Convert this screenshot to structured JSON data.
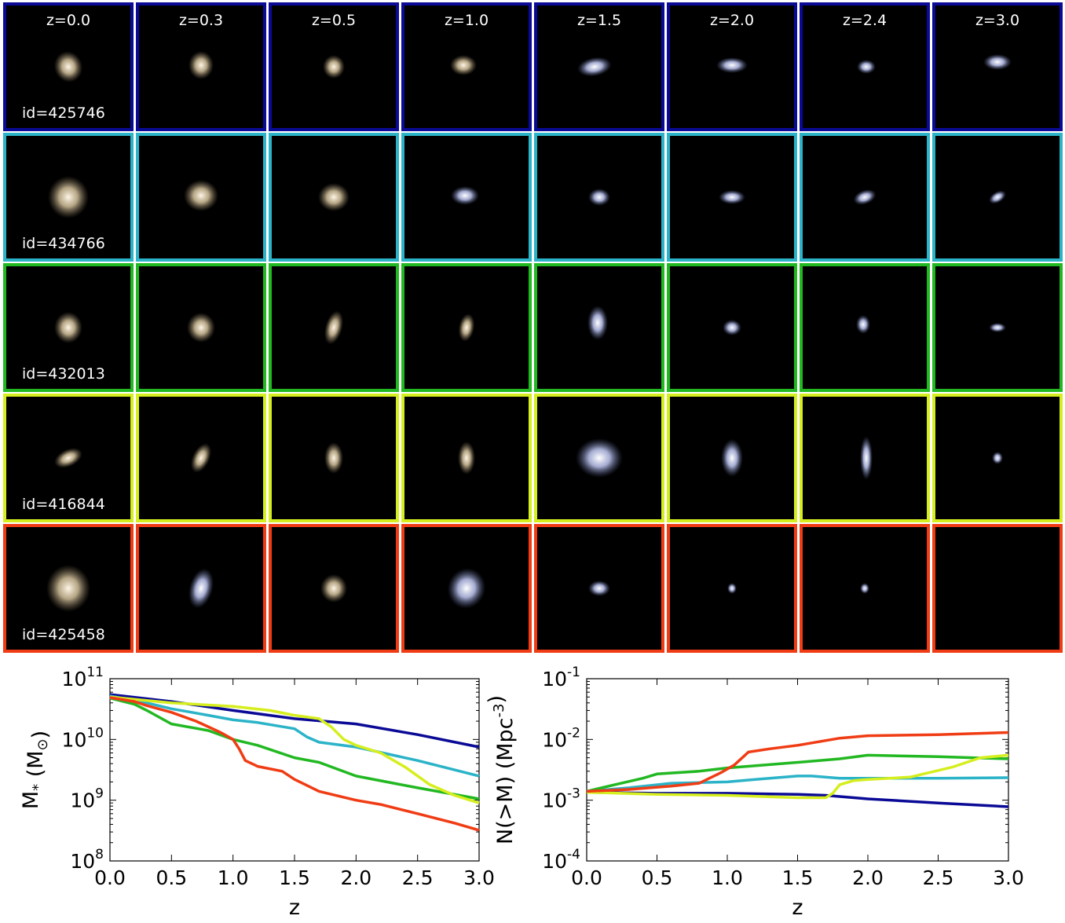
{
  "rows": [
    {
      "id_label": "id=425746",
      "color": "#0a0a96"
    },
    {
      "id_label": "id=434766",
      "color": "#2bb3c8"
    },
    {
      "id_label": "id=432013",
      "color": "#22b822"
    },
    {
      "id_label": "id=416844",
      "color": "#d6ee1e"
    },
    {
      "id_label": "id=425458",
      "color": "#f03c14"
    }
  ],
  "z_labels": [
    "z=0.0",
    "z=0.3",
    "z=0.5",
    "z=1.0",
    "z=1.5",
    "z=2.0",
    "z=2.4",
    "z=3.0"
  ],
  "chart_data": [
    {
      "type": "line",
      "xlabel": "z",
      "ylabel": "M_* (M_⊙)",
      "xlim": [
        0.0,
        3.0
      ],
      "ylim": [
        100000000.0,
        100000000000.0
      ],
      "yscale": "log",
      "x_ticks": [
        "0.0",
        "0.5",
        "1.0",
        "1.5",
        "2.0",
        "2.5",
        "3.0"
      ],
      "y_ticks": [
        {
          "base": "10",
          "exp": "8"
        },
        {
          "base": "10",
          "exp": "9"
        },
        {
          "base": "10",
          "exp": "10"
        },
        {
          "base": "10",
          "exp": "11"
        }
      ],
      "series": [
        {
          "color": "#0a0a96",
          "x": [
            0,
            0.5,
            1.0,
            1.5,
            2.0,
            2.5,
            3.0
          ],
          "y": [
            55000000000.0,
            42000000000.0,
            30000000000.0,
            22000000000.0,
            18000000000.0,
            12000000000.0,
            7500000000.0
          ]
        },
        {
          "color": "#2bb3c8",
          "x": [
            0,
            0.3,
            0.5,
            0.8,
            1.0,
            1.2,
            1.5,
            1.6,
            1.7,
            2.0,
            2.5,
            3.0
          ],
          "y": [
            52000000000.0,
            40000000000.0,
            32000000000.0,
            25000000000.0,
            21000000000.0,
            19000000000.0,
            15000000000.0,
            11000000000.0,
            9000000000.0,
            7500000000.0,
            4500000000.0,
            2500000000.0
          ]
        },
        {
          "color": "#22b822",
          "x": [
            0,
            0.2,
            0.3,
            0.5,
            0.8,
            1.0,
            1.2,
            1.5,
            1.7,
            2.0,
            2.5,
            3.0
          ],
          "y": [
            48000000000.0,
            38000000000.0,
            30000000000.0,
            18000000000.0,
            14000000000.0,
            10000000000.0,
            8000000000.0,
            5000000000.0,
            4200000000.0,
            2500000000.0,
            1600000000.0,
            1050000000.0
          ]
        },
        {
          "color": "#d6ee1e",
          "x": [
            0,
            0.5,
            1.0,
            1.3,
            1.5,
            1.7,
            1.8,
            1.9,
            2.0,
            2.2,
            2.4,
            2.6,
            2.8,
            3.0
          ],
          "y": [
            50000000000.0,
            40000000000.0,
            35000000000.0,
            30000000000.0,
            25000000000.0,
            22000000000.0,
            16000000000.0,
            10000000000.0,
            8000000000.0,
            6000000000.0,
            3500000000.0,
            1800000000.0,
            1200000000.0,
            900000000.0
          ]
        },
        {
          "color": "#f03c14",
          "x": [
            0,
            0.2,
            0.3,
            0.5,
            0.7,
            0.9,
            1.0,
            1.05,
            1.1,
            1.2,
            1.4,
            1.5,
            1.7,
            2.0,
            2.2,
            2.5,
            2.8,
            3.0
          ],
          "y": [
            49000000000.0,
            42000000000.0,
            36000000000.0,
            28000000000.0,
            20000000000.0,
            13000000000.0,
            10000000000.0,
            7000000000.0,
            4500000000.0,
            3600000000.0,
            3000000000.0,
            2200000000.0,
            1400000000.0,
            1000000000.0,
            850000000.0,
            600000000.0,
            420000000.0,
            320000000.0
          ]
        }
      ]
    },
    {
      "type": "line",
      "xlabel": "z",
      "ylabel": "N(>M) (Mpc^-3)",
      "xlim": [
        0.0,
        3.0
      ],
      "ylim": [
        0.0001,
        0.1
      ],
      "yscale": "log",
      "x_ticks": [
        "0.0",
        "0.5",
        "1.0",
        "1.5",
        "2.0",
        "2.5",
        "3.0"
      ],
      "y_ticks": [
        {
          "base": "10",
          "exp": "-4"
        },
        {
          "base": "10",
          "exp": "-3"
        },
        {
          "base": "10",
          "exp": "-2"
        },
        {
          "base": "10",
          "exp": "-1"
        }
      ],
      "series": [
        {
          "color": "#0a0a96",
          "x": [
            0,
            0.5,
            1.0,
            1.5,
            1.7,
            2.0,
            2.5,
            3.0
          ],
          "y": [
            0.00135,
            0.0013,
            0.0013,
            0.00125,
            0.0012,
            0.00105,
            0.0009,
            0.00078
          ]
        },
        {
          "color": "#2bb3c8",
          "x": [
            0,
            0.3,
            0.6,
            1.0,
            1.2,
            1.5,
            1.6,
            1.8,
            2.0,
            2.5,
            3.0
          ],
          "y": [
            0.0014,
            0.0016,
            0.0019,
            0.002,
            0.0022,
            0.0025,
            0.0025,
            0.0023,
            0.0023,
            0.0023,
            0.00235
          ]
        },
        {
          "color": "#22b822",
          "x": [
            0,
            0.2,
            0.4,
            0.5,
            0.8,
            1.0,
            1.5,
            1.8,
            2.0,
            2.5,
            3.0
          ],
          "y": [
            0.0014,
            0.0018,
            0.0023,
            0.0027,
            0.003,
            0.0034,
            0.0042,
            0.0048,
            0.0055,
            0.0052,
            0.0048
          ]
        },
        {
          "color": "#d6ee1e",
          "x": [
            0,
            0.5,
            1.0,
            1.5,
            1.7,
            1.75,
            1.8,
            1.9,
            2.0,
            2.3,
            2.6,
            2.8,
            3.0
          ],
          "y": [
            0.00135,
            0.00125,
            0.0012,
            0.0011,
            0.0011,
            0.0013,
            0.0018,
            0.0021,
            0.0022,
            0.0024,
            0.0035,
            0.005,
            0.0055
          ]
        },
        {
          "color": "#f03c14",
          "x": [
            0,
            0.3,
            0.6,
            0.8,
            0.95,
            1.05,
            1.15,
            1.3,
            1.5,
            1.8,
            2.0,
            2.5,
            3.0
          ],
          "y": [
            0.0014,
            0.0015,
            0.0017,
            0.0019,
            0.0028,
            0.0038,
            0.0062,
            0.007,
            0.008,
            0.0105,
            0.0115,
            0.012,
            0.013
          ]
        }
      ]
    }
  ]
}
